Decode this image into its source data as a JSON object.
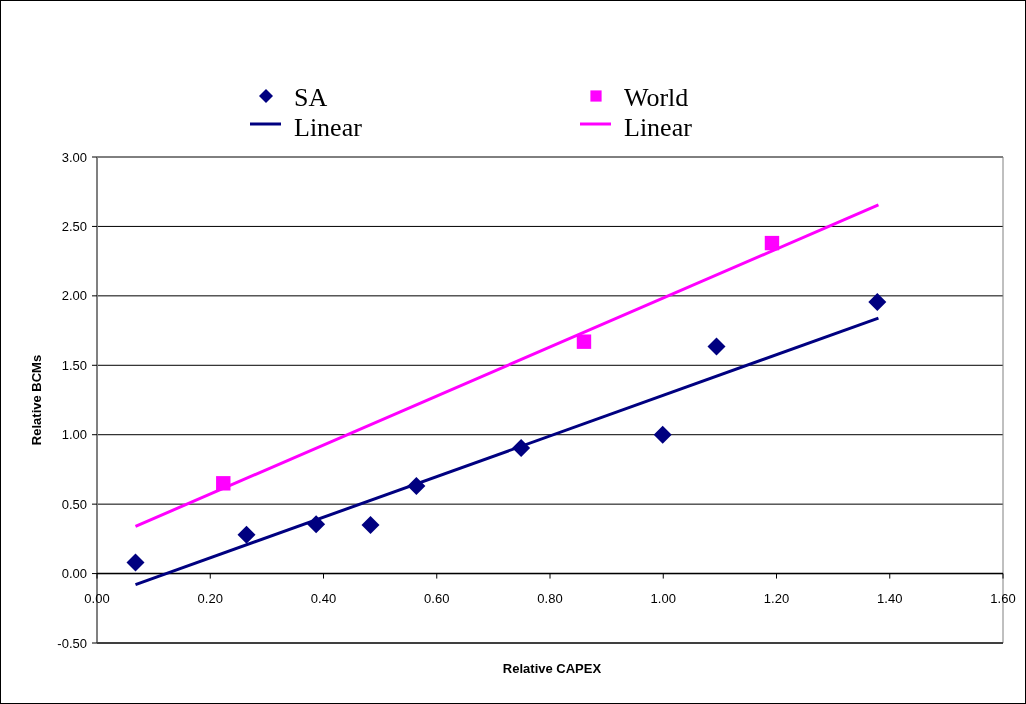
{
  "chart_data": {
    "type": "scatter",
    "xlabel": "Relative CAPEX",
    "ylabel": "Relative BCMs",
    "xlim": [
      0,
      1.6
    ],
    "ylim": [
      -0.5,
      3
    ],
    "xticks": [
      {
        "value": 0,
        "label": "0.00"
      },
      {
        "value": 0.2,
        "label": "0.20"
      },
      {
        "value": 0.4,
        "label": "0.40"
      },
      {
        "value": 0.6,
        "label": "0.60"
      },
      {
        "value": 0.8,
        "label": "0.80"
      },
      {
        "value": 1,
        "label": "1.00"
      },
      {
        "value": 1.2,
        "label": "1.20"
      },
      {
        "value": 1.4,
        "label": "1.40"
      },
      {
        "value": 1.6,
        "label": "1.60"
      }
    ],
    "yticks": [
      {
        "value": -0.5,
        "label": "-0.50"
      },
      {
        "value": 0,
        "label": "0.00"
      },
      {
        "value": 0.5,
        "label": "0.50"
      },
      {
        "value": 1,
        "label": "1.00"
      },
      {
        "value": 1.5,
        "label": "1.50"
      },
      {
        "value": 2,
        "label": "2.00"
      },
      {
        "value": 2.5,
        "label": "2.50"
      },
      {
        "value": 3,
        "label": "3.00"
      }
    ],
    "grid": "y",
    "legend": "top",
    "series": [
      {
        "name": "SA",
        "marker": "diamond",
        "color": "#000080",
        "x": [
          0.068,
          0.264,
          0.387,
          0.483,
          0.564,
          0.749,
          0.999,
          1.094,
          1.378
        ],
        "values": [
          0.08,
          0.28,
          0.355,
          0.35,
          0.63,
          0.905,
          1.0,
          1.635,
          1.955
        ]
      },
      {
        "name": "Linear",
        "type": "line",
        "marker": "none",
        "color": "#000080",
        "x": [
          0.068,
          1.38
        ],
        "values": [
          -0.08,
          1.84
        ]
      },
      {
        "name": "World",
        "marker": "square",
        "color": "#ff00ff",
        "x": [
          0.223,
          0.86,
          1.192
        ],
        "values": [
          0.65,
          1.67,
          2.38
        ]
      },
      {
        "name": "Linear",
        "type": "line",
        "marker": "none",
        "color": "#ff00ff",
        "x": [
          0.068,
          1.38
        ],
        "values": [
          0.34,
          2.655
        ]
      }
    ]
  }
}
